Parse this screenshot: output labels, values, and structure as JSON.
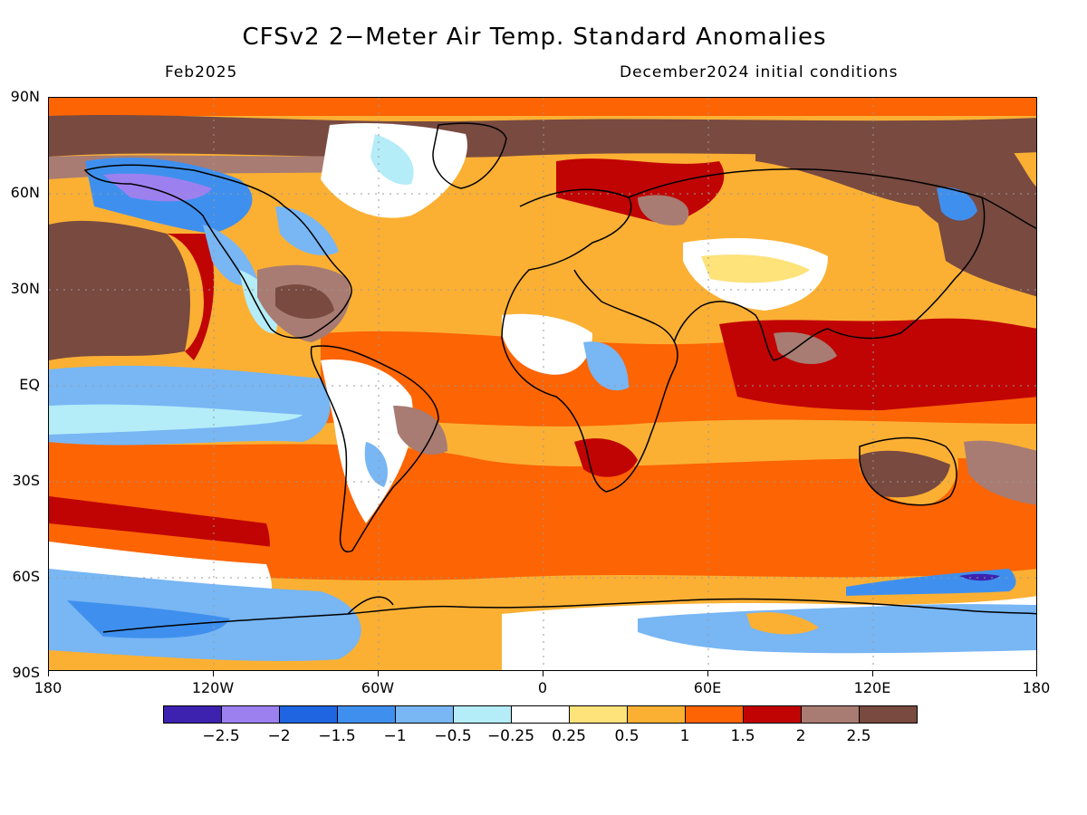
{
  "title": "CFSv2 2−Meter Air Temp. Standard Anomalies",
  "subtitle_left": "Feb2025",
  "subtitle_right": "December2024 initial conditions",
  "lat_labels": [
    "90N",
    "60N",
    "30N",
    "EQ",
    "30S",
    "60S",
    "90S"
  ],
  "lon_labels": [
    "180",
    "120W",
    "60W",
    "0",
    "60E",
    "120E",
    "180"
  ],
  "colorbar": {
    "colors": [
      "#3d22b0",
      "#9d80f0",
      "#1f64e0",
      "#3f90ee",
      "#78b6f4",
      "#b4ecf8",
      "#ffffff",
      "#fee27a",
      "#fbb034",
      "#fc6404",
      "#c00404",
      "#a87c72",
      "#784a40"
    ],
    "labels": [
      "−2.5",
      "−2",
      "−1.5",
      "−1",
      "−0.5",
      "−0.25",
      "0.25",
      "0.5",
      "1",
      "1.5",
      "2",
      "2.5"
    ]
  }
}
